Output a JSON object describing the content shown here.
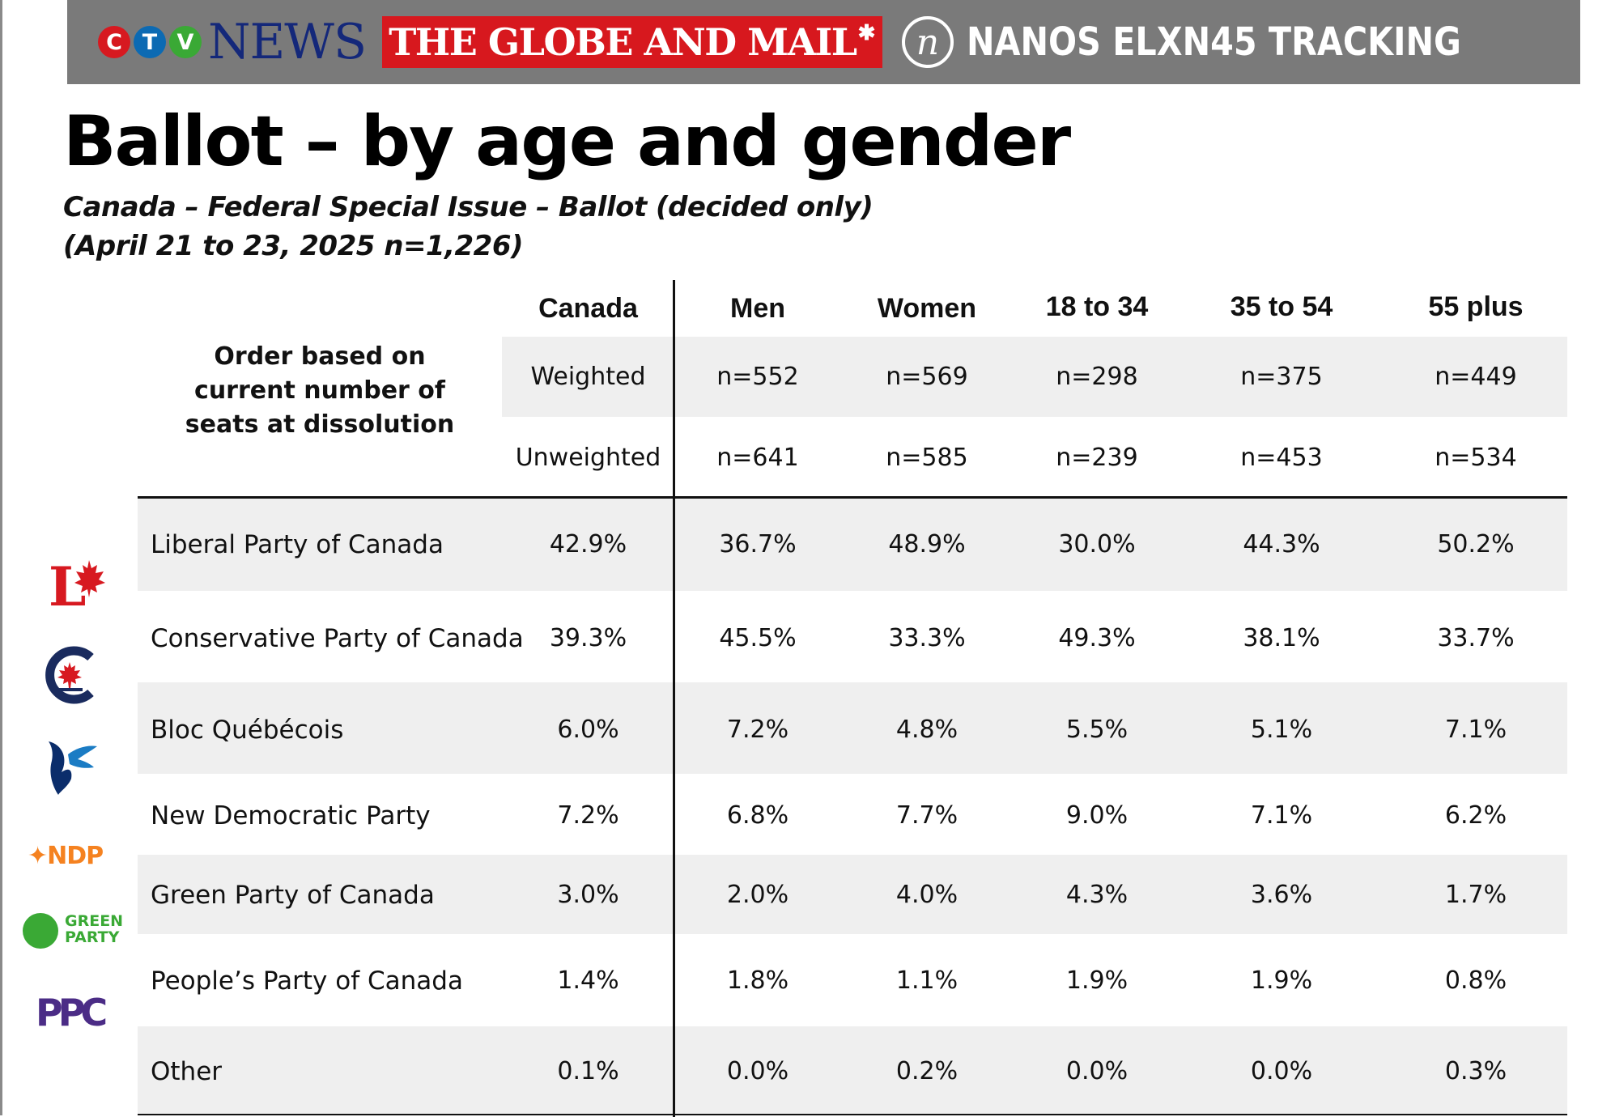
{
  "banner": {
    "ctv_letters": [
      "C",
      "T",
      "V"
    ],
    "news": "NEWS",
    "globe": "THE GLOBE AND MAIL",
    "nanos_mark": "n",
    "tracking": "NANOS ELXN45 TRACKING"
  },
  "title": "Ballot – by age and gender",
  "subtitle_line1": "Canada – Federal Special Issue – Ballot (decided only)",
  "subtitle_line2": "(April 21 to 23, 2025 n=1,226)",
  "note": "Order based on current number of seats at dissolution",
  "columns": [
    "Canada",
    "Men",
    "Women",
    "18 to 34",
    "35 to 54",
    "55 plus"
  ],
  "weighted": {
    "label": "Weighted",
    "values": [
      "n=552",
      "n=569",
      "n=298",
      "n=375",
      "n=449"
    ]
  },
  "unweighted": {
    "label": "Unweighted",
    "values": [
      "n=641",
      "n=585",
      "n=239",
      "n=453",
      "n=534"
    ]
  },
  "rows": [
    {
      "party": "Liberal Party of Canada",
      "values": [
        "42.9%",
        "36.7%",
        "48.9%",
        "30.0%",
        "44.3%",
        "50.2%"
      ]
    },
    {
      "party": "Conservative Party of Canada",
      "values": [
        "39.3%",
        "45.5%",
        "33.3%",
        "49.3%",
        "38.1%",
        "33.7%"
      ]
    },
    {
      "party": "Bloc Québécois",
      "values": [
        "6.0%",
        "7.2%",
        "4.8%",
        "5.5%",
        "5.1%",
        "7.1%"
      ]
    },
    {
      "party": "New Democratic Party",
      "values": [
        "7.2%",
        "6.8%",
        "7.7%",
        "9.0%",
        "7.1%",
        "6.2%"
      ]
    },
    {
      "party": "Green Party of Canada",
      "values": [
        "3.0%",
        "2.0%",
        "4.0%",
        "4.3%",
        "3.6%",
        "1.7%"
      ]
    },
    {
      "party": "People’s Party of Canada",
      "values": [
        "1.4%",
        "1.8%",
        "1.1%",
        "1.9%",
        "1.9%",
        "0.8%"
      ]
    },
    {
      "party": "Other",
      "values": [
        "0.1%",
        "0.0%",
        "0.2%",
        "0.0%",
        "0.0%",
        "0.3%"
      ]
    }
  ],
  "logos": {
    "liberal": "L",
    "ndp": "NDP",
    "green_line1": "GREEN",
    "green_line2": "PARTY",
    "ppc": "PPC"
  },
  "colors": {
    "banner_bg": "#7a7a7a",
    "ctv_red": "#d71920",
    "ctv_blue": "#0c6ab3",
    "ctv_green": "#3aa935",
    "globe_red": "#d7181e",
    "liberal_red": "#d71920",
    "conservative_blue": "#1a2b5e",
    "bloc_blue": "#0b2d6b",
    "ndp_orange": "#f58220",
    "green": "#3aa935",
    "ppc_purple": "#4b2c86",
    "row_shade": "#efefef"
  }
}
